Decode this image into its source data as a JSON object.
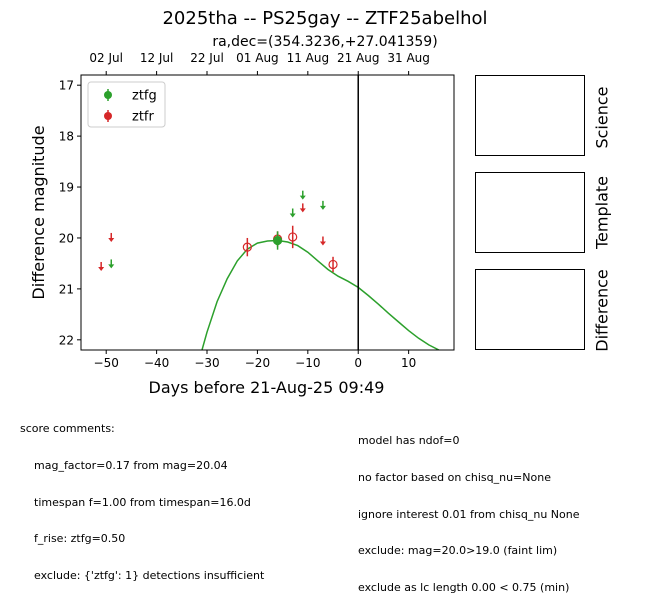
{
  "header": {
    "title": "2025tha -- PS25gay -- ZTF25abelhol",
    "subtitle": "ra,dec=(354.3236,+27.041359)"
  },
  "chart_data": {
    "type": "scatter",
    "xlabel": "Days before 21-Aug-25 09:49",
    "ylabel": "Difference magnitude",
    "xlim": [
      -55,
      19
    ],
    "ylim": [
      22.2,
      16.8
    ],
    "y_inverted": true,
    "x_ticks": [
      -50,
      -40,
      -30,
      -20,
      -10,
      0,
      10
    ],
    "x_tick_labels": [
      "−50",
      "−40",
      "−30",
      "−20",
      "−10",
      "0",
      "10"
    ],
    "y_ticks": [
      17,
      18,
      19,
      20,
      21,
      22
    ],
    "y_tick_labels": [
      "17",
      "18",
      "19",
      "20",
      "21",
      "22"
    ],
    "top_axis": {
      "ticks": [
        -50,
        -40,
        -30,
        -20,
        -10,
        0,
        10
      ],
      "labels": [
        "02 Jul",
        "12 Jul",
        "22 Jul",
        "01 Aug",
        "11 Aug",
        "21 Aug",
        "31 Aug"
      ]
    },
    "vline_x": 0,
    "legend": {
      "placement": "top-left",
      "entries": [
        {
          "label": "ztfg",
          "color": "#2ca02c"
        },
        {
          "label": "ztfr",
          "color": "#d62728"
        }
      ]
    },
    "series": [
      {
        "name": "ztfg",
        "color": "#2ca02c",
        "detections": [
          {
            "x": -16.0,
            "y": 20.05,
            "err": 0.18,
            "filled": true
          }
        ],
        "upper_limits": [
          {
            "x": -49.0,
            "y": 20.5
          },
          {
            "x": -13.0,
            "y": 19.5
          },
          {
            "x": -11.0,
            "y": 19.15
          },
          {
            "x": -7.0,
            "y": 19.35
          }
        ]
      },
      {
        "name": "ztfr",
        "color": "#d62728",
        "detections": [
          {
            "x": -22.0,
            "y": 20.18,
            "err": 0.18,
            "filled": false
          },
          {
            "x": -16.0,
            "y": 20.02,
            "err": 0.15,
            "filled": false
          },
          {
            "x": -13.0,
            "y": 19.98,
            "err": 0.22,
            "filled": false
          },
          {
            "x": -5.0,
            "y": 20.52,
            "err": 0.15,
            "filled": false
          }
        ],
        "upper_limits": [
          {
            "x": -51.0,
            "y": 20.55
          },
          {
            "x": -49.0,
            "y": 19.98
          },
          {
            "x": -11.0,
            "y": 19.4
          },
          {
            "x": -7.0,
            "y": 20.05
          }
        ]
      }
    ],
    "model_curve": {
      "color": "#2ca02c",
      "points": [
        [
          -31,
          22.2
        ],
        [
          -30,
          21.85
        ],
        [
          -28,
          21.25
        ],
        [
          -26,
          20.8
        ],
        [
          -24,
          20.45
        ],
        [
          -22,
          20.22
        ],
        [
          -20,
          20.1
        ],
        [
          -18,
          20.06
        ],
        [
          -16,
          20.05
        ],
        [
          -14,
          20.08
        ],
        [
          -12,
          20.15
        ],
        [
          -10,
          20.28
        ],
        [
          -8,
          20.45
        ],
        [
          -6,
          20.62
        ],
        [
          -4,
          20.75
        ],
        [
          -2,
          20.85
        ],
        [
          0,
          20.97
        ],
        [
          2,
          21.13
        ],
        [
          4,
          21.3
        ],
        [
          6,
          21.48
        ],
        [
          8,
          21.65
        ],
        [
          10,
          21.82
        ],
        [
          12,
          21.97
        ],
        [
          14,
          22.1
        ],
        [
          16,
          22.2
        ]
      ]
    }
  },
  "panels": {
    "science_label": "Science",
    "template_label": "Template",
    "difference_label": "Difference"
  },
  "comments": {
    "left_header": "score comments:",
    "left_lines": [
      "mag_factor=0.17 from mag=20.04",
      "timespan f=1.00 from timespan=16.0d",
      "f_rise: ztfg=0.50",
      "exclude: {'ztfg': 1} detections insufficient"
    ],
    "right_lines": [
      "model has ndof=0",
      "no factor based on chisq_nu=None",
      "ignore interest 0.01 from chisq_nu None",
      "exclude: mag=20.0>19.0 (faint lim)",
      "exclude as lc length 0.00 < 0.75 (min)"
    ]
  }
}
